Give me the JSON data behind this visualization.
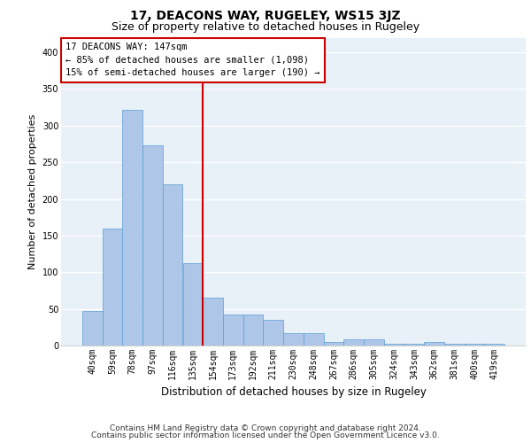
{
  "title": "17, DEACONS WAY, RUGELEY, WS15 3JZ",
  "subtitle": "Size of property relative to detached houses in Rugeley",
  "xlabel": "Distribution of detached houses by size in Rugeley",
  "ylabel": "Number of detached properties",
  "categories": [
    "40sqm",
    "59sqm",
    "78sqm",
    "97sqm",
    "116sqm",
    "135sqm",
    "154sqm",
    "173sqm",
    "192sqm",
    "211sqm",
    "230sqm",
    "248sqm",
    "267sqm",
    "286sqm",
    "305sqm",
    "324sqm",
    "343sqm",
    "362sqm",
    "381sqm",
    "400sqm",
    "419sqm"
  ],
  "values": [
    47,
    160,
    322,
    273,
    220,
    113,
    65,
    42,
    42,
    35,
    17,
    17,
    5,
    8,
    8,
    2,
    2,
    5,
    2,
    2,
    2
  ],
  "bar_color": "#aec6e8",
  "bar_edge_color": "#5a9fd4",
  "background_color": "#e8f0f8",
  "grid_color": "#ffffff",
  "vline_x": 5.47,
  "vline_color": "#cc0000",
  "annotation_text": "17 DEACONS WAY: 147sqm\n← 85% of detached houses are smaller (1,098)\n15% of semi-detached houses are larger (190) →",
  "annotation_box_color": "#ffffff",
  "annotation_box_edge_color": "#cc0000",
  "ylim": [
    0,
    420
  ],
  "yticks": [
    0,
    50,
    100,
    150,
    200,
    250,
    300,
    350,
    400
  ],
  "footer_line1": "Contains HM Land Registry data © Crown copyright and database right 2024.",
  "footer_line2": "Contains public sector information licensed under the Open Government Licence v3.0.",
  "title_fontsize": 10,
  "subtitle_fontsize": 9,
  "xlabel_fontsize": 8.5,
  "ylabel_fontsize": 8,
  "tick_fontsize": 7,
  "annotation_fontsize": 7.5,
  "footer_fontsize": 6.5
}
